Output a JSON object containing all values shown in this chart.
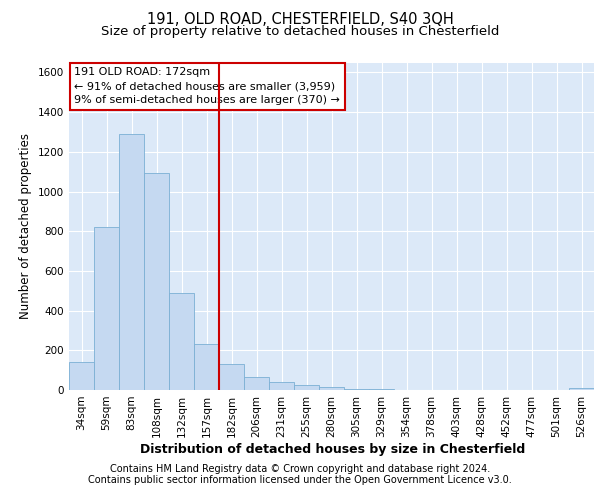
{
  "title1": "191, OLD ROAD, CHESTERFIELD, S40 3QH",
  "title2": "Size of property relative to detached houses in Chesterfield",
  "xlabel": "Distribution of detached houses by size in Chesterfield",
  "ylabel": "Number of detached properties",
  "footnote1": "Contains HM Land Registry data © Crown copyright and database right 2024.",
  "footnote2": "Contains public sector information licensed under the Open Government Licence v3.0.",
  "bar_labels": [
    "34sqm",
    "59sqm",
    "83sqm",
    "108sqm",
    "132sqm",
    "157sqm",
    "182sqm",
    "206sqm",
    "231sqm",
    "255sqm",
    "280sqm",
    "305sqm",
    "329sqm",
    "354sqm",
    "378sqm",
    "403sqm",
    "428sqm",
    "452sqm",
    "477sqm",
    "501sqm",
    "526sqm"
  ],
  "bar_values": [
    140,
    820,
    1290,
    1095,
    490,
    230,
    130,
    65,
    38,
    27,
    14,
    5,
    3,
    2,
    1,
    0,
    0,
    0,
    0,
    0,
    12
  ],
  "bar_color": "#c5d9f1",
  "bar_edgecolor": "#7bafd4",
  "vline_x": 6.0,
  "vline_color": "#cc0000",
  "annotation_text": "191 OLD ROAD: 172sqm\n← 91% of detached houses are smaller (3,959)\n9% of semi-detached houses are larger (370) →",
  "annotation_box_facecolor": "#ffffff",
  "annotation_box_edgecolor": "#cc0000",
  "ylim": [
    0,
    1650
  ],
  "yticks": [
    0,
    200,
    400,
    600,
    800,
    1000,
    1200,
    1400,
    1600
  ],
  "bg_color": "#dce9f8",
  "grid_color": "#ffffff",
  "title1_fontsize": 10.5,
  "title2_fontsize": 9.5,
  "xlabel_fontsize": 9,
  "ylabel_fontsize": 8.5,
  "tick_fontsize": 7.5,
  "annotation_fontsize": 8,
  "footnote_fontsize": 7
}
